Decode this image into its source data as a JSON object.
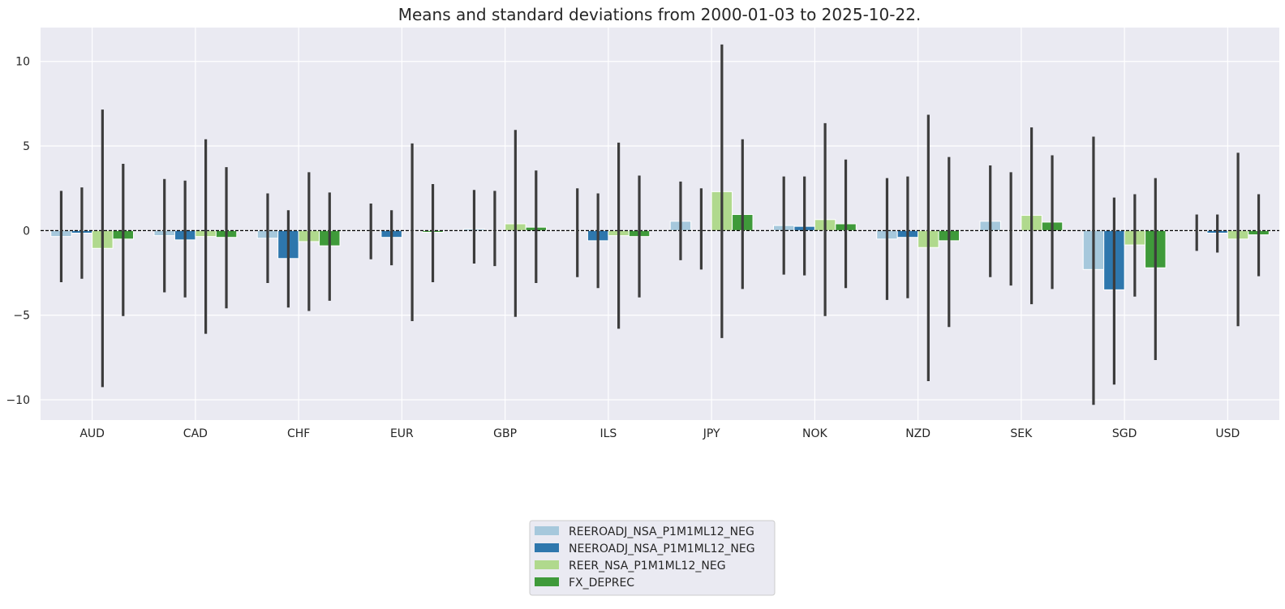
{
  "chart_data": {
    "type": "bar",
    "title": "Means and standard deviations from 2000-01-03 to 2025-10-22.",
    "xlabel": "",
    "ylabel": "",
    "ylim": [
      -11.2,
      12.0
    ],
    "yticks": [
      -10,
      -5,
      0,
      5,
      10
    ],
    "ytick_labels": [
      "−10",
      "−5",
      "0",
      "5",
      "10"
    ],
    "grid": true,
    "legend_position": "bottom-center",
    "reference_line": 0,
    "categories": [
      "AUD",
      "CAD",
      "CHF",
      "EUR",
      "GBP",
      "ILS",
      "JPY",
      "NOK",
      "NZD",
      "SEK",
      "SGD",
      "USD"
    ],
    "series": [
      {
        "name": "REEROADJ_NSA_P1M1ML12_NEG",
        "color": "#a6c8dc",
        "values": [
          -0.35,
          -0.3,
          -0.45,
          0.0,
          0.1,
          0.0,
          0.55,
          0.3,
          -0.5,
          0.55,
          -2.3,
          0.0
        ],
        "err_low": [
          -3.05,
          -3.65,
          -3.1,
          -1.7,
          -1.95,
          -2.75,
          -1.75,
          -2.6,
          -4.1,
          -2.75,
          -10.3,
          -1.2
        ],
        "err_high": [
          2.35,
          3.05,
          2.2,
          1.6,
          2.4,
          2.5,
          2.9,
          3.2,
          3.1,
          3.85,
          5.55,
          0.95
        ]
      },
      {
        "name": "NEEROADJ_NSA_P1M1ML12_NEG",
        "color": "#2e77ad",
        "values": [
          -0.15,
          -0.55,
          -1.65,
          -0.4,
          0.0,
          -0.6,
          0.0,
          0.25,
          -0.4,
          0.0,
          -3.5,
          -0.15
        ],
        "err_low": [
          -2.85,
          -3.95,
          -4.55,
          -2.05,
          -2.1,
          -3.4,
          -2.3,
          -2.65,
          -4.0,
          -3.25,
          -9.1,
          -1.3
        ],
        "err_high": [
          2.55,
          2.95,
          1.2,
          1.2,
          2.35,
          2.2,
          2.5,
          3.2,
          3.2,
          3.45,
          1.95,
          0.95
        ]
      },
      {
        "name": "REER_NSA_P1M1ML12_NEG",
        "color": "#b0d98d",
        "values": [
          -1.05,
          -0.35,
          -0.65,
          0.0,
          0.4,
          -0.3,
          2.3,
          0.65,
          -1.0,
          0.9,
          -0.85,
          -0.5
        ],
        "err_low": [
          -9.25,
          -6.1,
          -4.75,
          -5.35,
          -5.1,
          -5.8,
          -6.35,
          -5.05,
          -8.9,
          -4.35,
          -3.9,
          -5.65
        ],
        "err_high": [
          7.15,
          5.4,
          3.45,
          5.15,
          5.95,
          5.2,
          11.0,
          6.35,
          6.85,
          6.1,
          2.15,
          4.6
        ]
      },
      {
        "name": "FX_DEPREC",
        "color": "#3f9a3a",
        "values": [
          -0.5,
          -0.4,
          -0.9,
          -0.1,
          0.2,
          -0.35,
          0.95,
          0.4,
          -0.6,
          0.5,
          -2.2,
          -0.25
        ],
        "err_low": [
          -5.05,
          -4.6,
          -4.15,
          -3.05,
          -3.1,
          -3.95,
          -3.45,
          -3.4,
          -5.7,
          -3.45,
          -7.65,
          -2.7
        ],
        "err_high": [
          3.95,
          3.75,
          2.25,
          2.75,
          3.55,
          3.25,
          5.4,
          4.2,
          4.35,
          4.45,
          3.1,
          2.15
        ]
      }
    ]
  }
}
